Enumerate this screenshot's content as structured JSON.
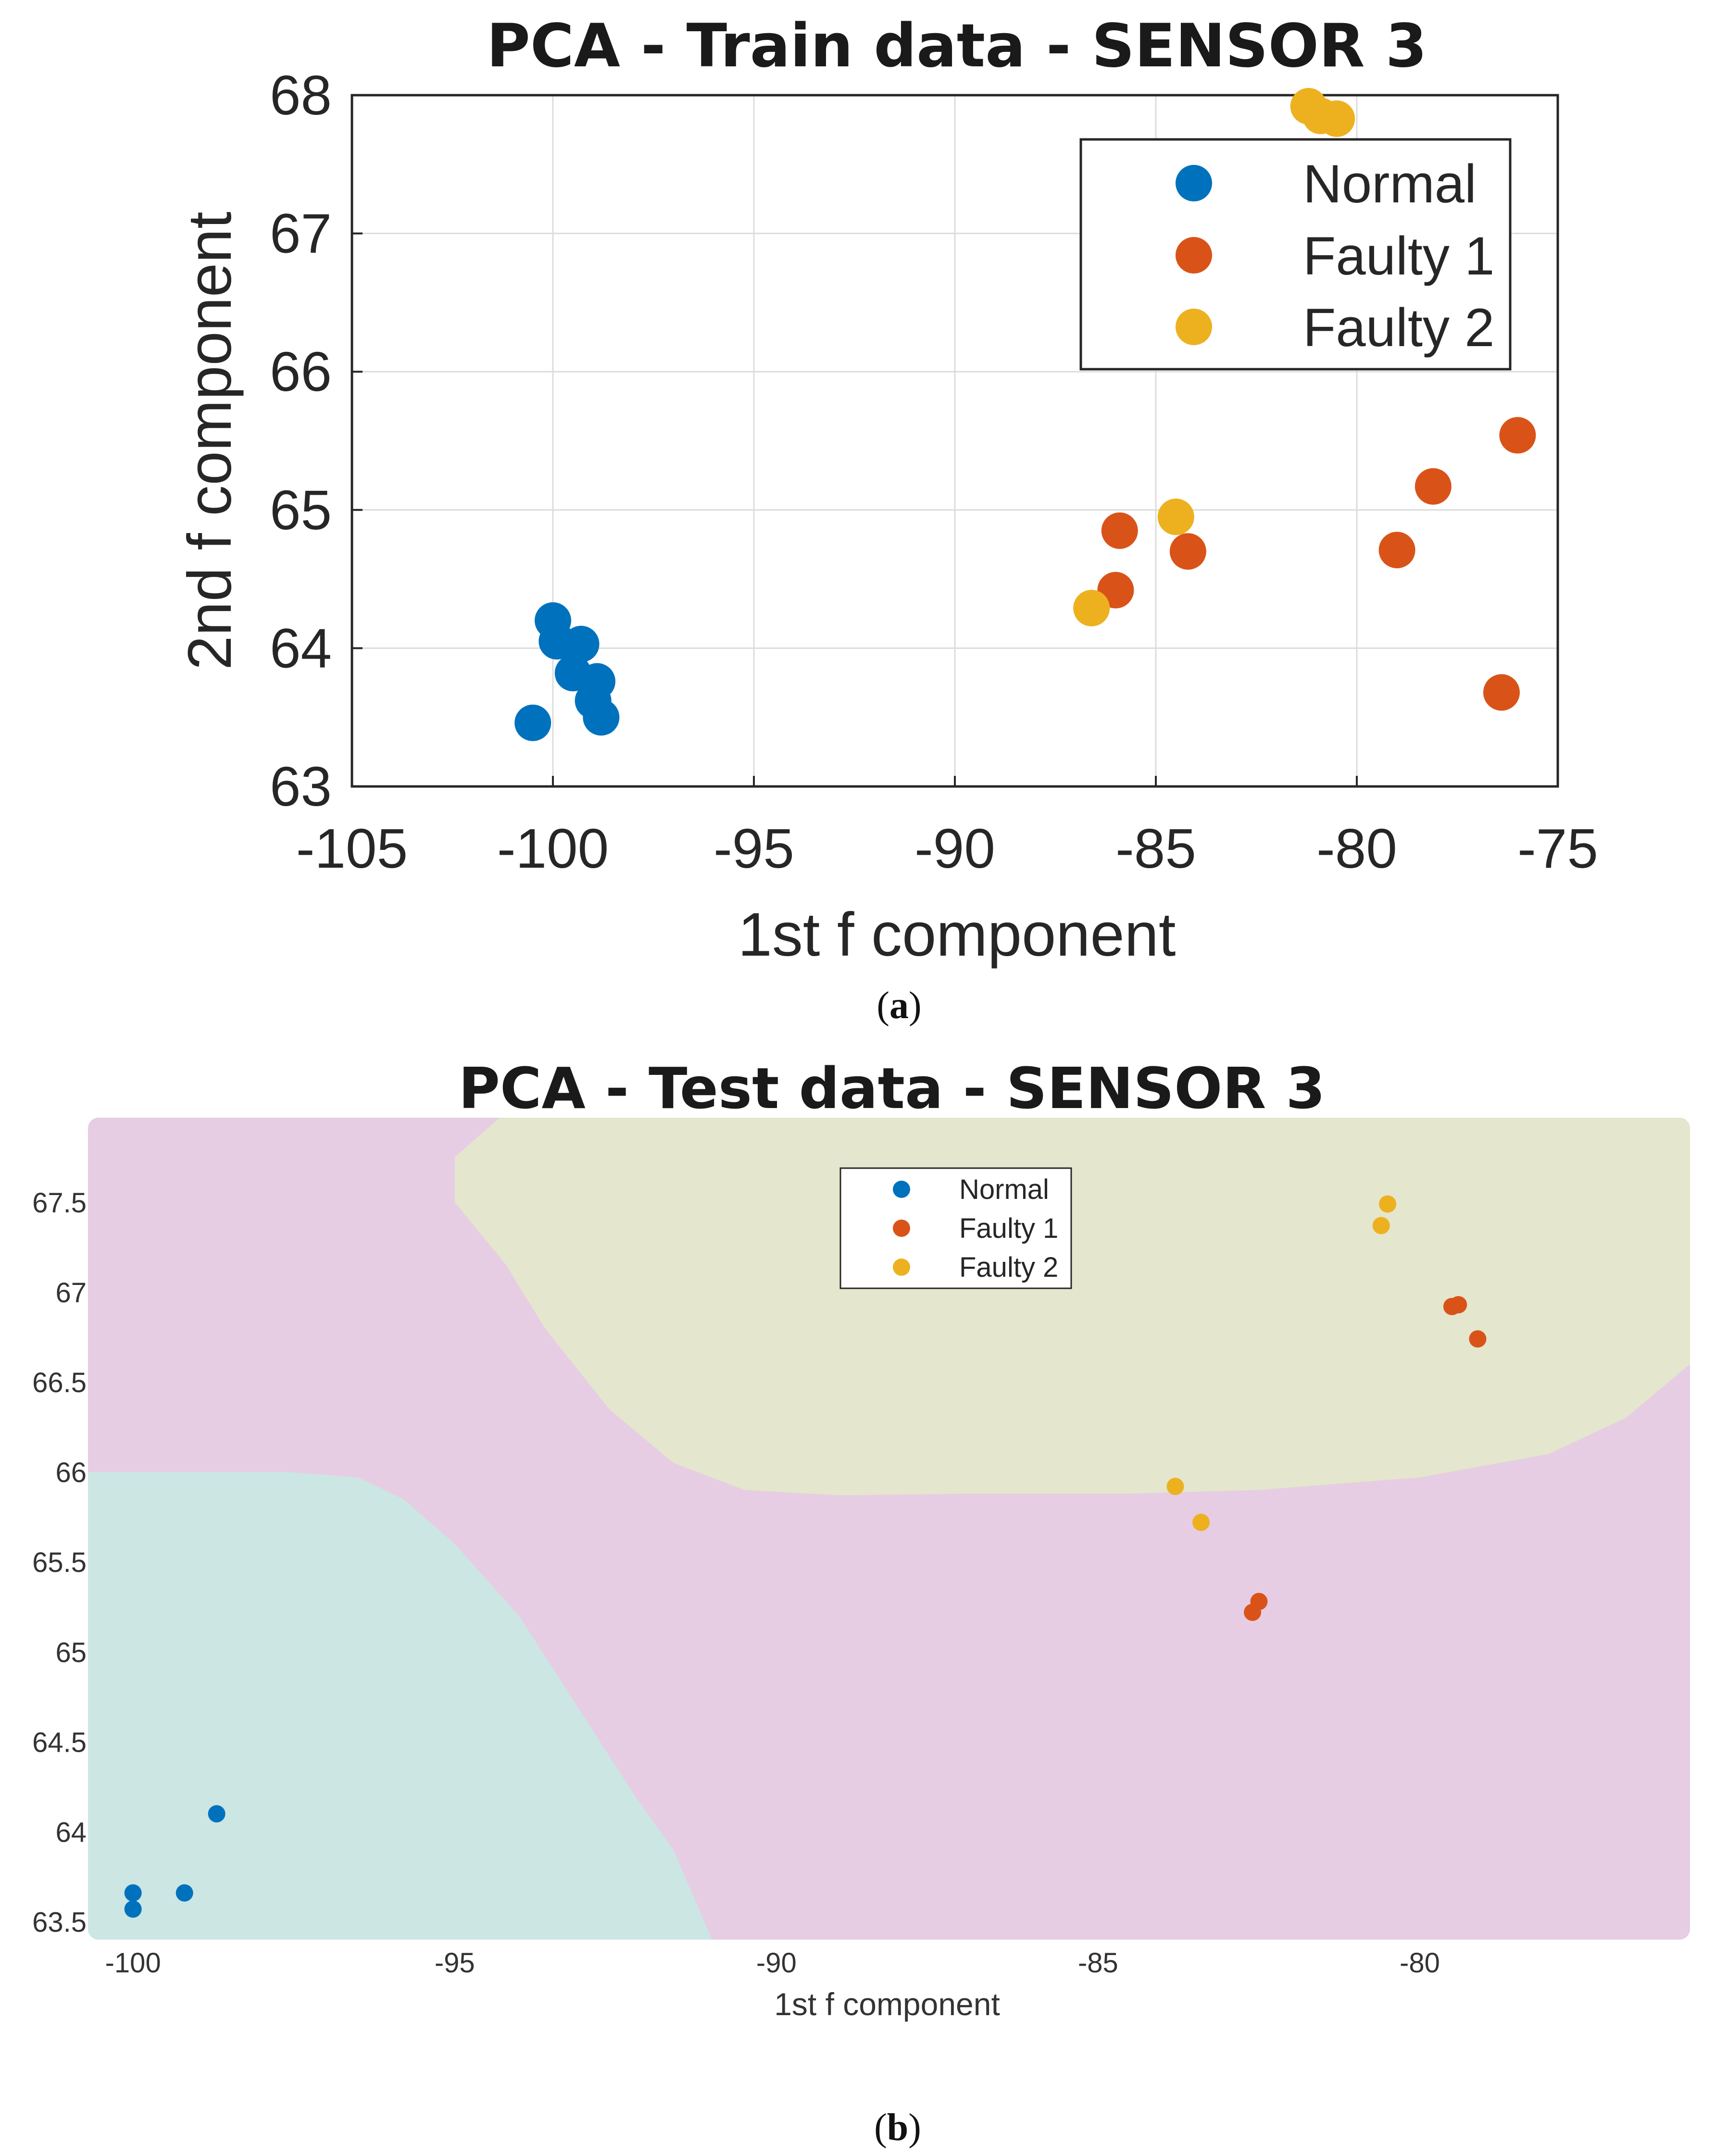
{
  "colors": {
    "normal": "#0072BD",
    "faulty1": "#D95319",
    "faulty2": "#EDB120",
    "region_normal": "#cce6e4",
    "region_faulty1": "#e6cde3",
    "region_faulty2": "#e4e6cd"
  },
  "chart_data": [
    {
      "type": "scatter",
      "title": "PCA - Train data - SENSOR 3",
      "xlabel": "1st f component",
      "ylabel": "2nd f component",
      "xlim": [
        -105,
        -75
      ],
      "ylim": [
        63,
        68
      ],
      "xticks": [
        -105,
        -100,
        -95,
        -90,
        -85,
        -80,
        -75
      ],
      "yticks": [
        63,
        64,
        65,
        66,
        67,
        68
      ],
      "xtick_labels": [
        "-105",
        "-100",
        "-95",
        "-90",
        "-85",
        "-80",
        "-75"
      ],
      "ytick_labels": [
        "63",
        "64",
        "65",
        "66",
        "67",
        "68"
      ],
      "grid": true,
      "legend_position": "top-right",
      "caption_open": "(",
      "caption_letter": "a",
      "caption_close": ")",
      "series": [
        {
          "name": "Normal",
          "color_key": "normal",
          "points": [
            [
              -100.5,
              63.46
            ],
            [
              -100.0,
              64.2
            ],
            [
              -99.9,
              64.05
            ],
            [
              -99.3,
              64.03
            ],
            [
              -99.5,
              63.82
            ],
            [
              -98.9,
              63.76
            ],
            [
              -99.0,
              63.62
            ],
            [
              -98.8,
              63.5
            ]
          ]
        },
        {
          "name": "Faulty 1",
          "color_key": "faulty1",
          "points": [
            [
              -85.9,
              64.85
            ],
            [
              -86.0,
              64.42
            ],
            [
              -84.2,
              64.7
            ],
            [
              -79.0,
              64.71
            ],
            [
              -78.1,
              65.17
            ],
            [
              -76.0,
              65.54
            ],
            [
              -76.4,
              63.68
            ]
          ]
        },
        {
          "name": "Faulty 2",
          "color_key": "faulty2",
          "points": [
            [
              -81.2,
              67.92
            ],
            [
              -80.9,
              67.85
            ],
            [
              -80.5,
              67.83
            ],
            [
              -84.5,
              64.95
            ],
            [
              -86.6,
              64.29
            ]
          ]
        }
      ]
    },
    {
      "type": "scatter",
      "title": "PCA - Test data - SENSOR 3",
      "xlabel": "1st f component",
      "ylabel": "",
      "xlim": [
        -100.7,
        -75.8
      ],
      "ylim": [
        63.4,
        67.97
      ],
      "xticks": [
        -100,
        -95,
        -90,
        -85,
        -80
      ],
      "yticks": [
        63.5,
        64,
        64.5,
        65,
        65.5,
        66,
        66.5,
        67,
        67.5
      ],
      "xtick_labels": [
        "-100",
        "-95",
        "-90",
        "-85",
        "-80"
      ],
      "ytick_labels": [
        "63.5",
        "64",
        "64.5",
        "65",
        "65.5",
        "66",
        "66.5",
        "67",
        "67.5"
      ],
      "grid": false,
      "legend_position": "top-center",
      "caption_open": "(",
      "caption_letter": "b",
      "caption_close": ")",
      "decision_regions": {
        "background_class": "Faulty 1",
        "Normal": {
          "boundary": [
            [
              -100.7,
              66.0
            ],
            [
              -97.6,
              66.0
            ],
            [
              -96.5,
              65.97
            ],
            [
              -95.8,
              65.85
            ],
            [
              -95.0,
              65.6
            ],
            [
              -94.0,
              65.2
            ],
            [
              -93.1,
              64.7
            ],
            [
              -92.2,
              64.2
            ],
            [
              -91.6,
              63.9
            ],
            [
              -91.0,
              63.4
            ],
            [
              -100.7,
              63.4
            ]
          ]
        },
        "Faulty 2": {
          "boundary": [
            [
              -94.3,
              67.97
            ],
            [
              -75.8,
              67.97
            ],
            [
              -75.8,
              66.6
            ],
            [
              -76.8,
              66.3
            ],
            [
              -78.0,
              66.1
            ],
            [
              -80.0,
              65.97
            ],
            [
              -82.5,
              65.9
            ],
            [
              -84.5,
              65.88
            ],
            [
              -87.0,
              65.88
            ],
            [
              -89.0,
              65.87
            ],
            [
              -90.5,
              65.9
            ],
            [
              -91.6,
              66.05
            ],
            [
              -92.6,
              66.35
            ],
            [
              -93.6,
              66.8
            ],
            [
              -94.2,
              67.15
            ],
            [
              -95.0,
              67.5
            ],
            [
              -95.0,
              67.75
            ]
          ]
        }
      },
      "series": [
        {
          "name": "Normal",
          "color_key": "normal",
          "points": [
            [
              -98.7,
              64.1
            ],
            [
              -99.2,
              63.66
            ],
            [
              -100.0,
              63.66
            ],
            [
              -100.0,
              63.57
            ]
          ]
        },
        {
          "name": "Faulty 1",
          "color_key": "faulty1",
          "points": [
            [
              -79.4,
              66.93
            ],
            [
              -79.5,
              66.92
            ],
            [
              -79.1,
              66.74
            ],
            [
              -82.5,
              65.28
            ],
            [
              -82.6,
              65.22
            ]
          ]
        },
        {
          "name": "Faulty 2",
          "color_key": "faulty2",
          "points": [
            [
              -80.5,
              67.49
            ],
            [
              -80.6,
              67.37
            ],
            [
              -83.8,
              65.92
            ],
            [
              -83.4,
              65.72
            ]
          ]
        }
      ]
    }
  ]
}
